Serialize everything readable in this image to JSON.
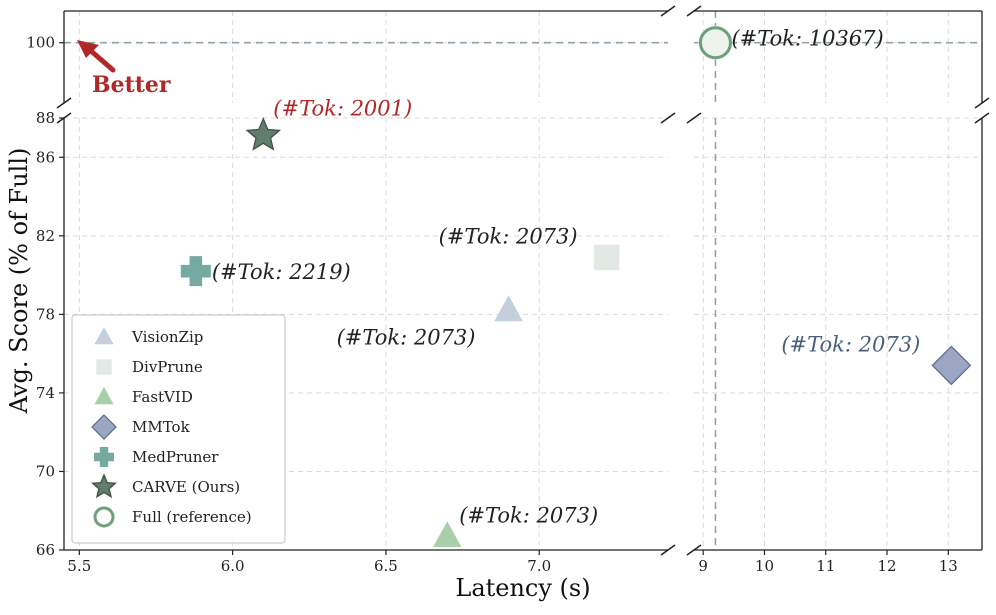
{
  "chart_data": {
    "type": "scatter",
    "title": "",
    "xlabel": "Latency (s)",
    "ylabel": "Avg. Score (% of Full)",
    "x_axis_segments": [
      {
        "range": [
          5.45,
          7.42
        ],
        "ticks": [
          5.5,
          6.0,
          6.5,
          7.0
        ],
        "tick_labels": [
          "5.5",
          "6.0",
          "6.5",
          "7.0"
        ]
      },
      {
        "range": [
          8.85,
          13.55
        ],
        "ticks": [
          9,
          10,
          11,
          12,
          13
        ],
        "tick_labels": [
          "9",
          "10",
          "11",
          "12",
          "13"
        ]
      }
    ],
    "y_axis_segments": [
      {
        "range": [
          96.2,
          102.0
        ],
        "ticks": [
          100
        ],
        "tick_labels": [
          "100"
        ]
      },
      {
        "range": [
          66,
          88
        ],
        "ticks": [
          66,
          70,
          74,
          78,
          82,
          86,
          88
        ],
        "tick_labels": [
          "66",
          "70",
          "74",
          "78",
          "82",
          "86",
          "88"
        ]
      }
    ],
    "grid": true,
    "legend_position": "bottom-left",
    "series": [
      {
        "name": "VisionZip",
        "marker": "triangle",
        "color": "#c4cfdd",
        "x": 6.9,
        "y": 78.2,
        "annotation": "(#Tok: 2073)",
        "annotation_color": "#222222"
      },
      {
        "name": "DivPrune",
        "marker": "square",
        "color": "#e2e8e3",
        "x": 7.22,
        "y": 80.9,
        "annotation": "(#Tok: 2073)",
        "annotation_color": "#222222"
      },
      {
        "name": "FastVID",
        "marker": "triangle",
        "color": "#a8cfa9",
        "x": 6.7,
        "y": 66.7,
        "annotation": "(#Tok: 2073)",
        "annotation_color": "#222222"
      },
      {
        "name": "MMTok",
        "marker": "diamond",
        "color": "#9aa6c3",
        "x": 13.05,
        "y": 75.4,
        "annotation": "(#Tok: 2073)",
        "annotation_color": "#4c5f7e"
      },
      {
        "name": "MedPruner",
        "marker": "plus",
        "color": "#74aaa0",
        "x": 5.88,
        "y": 80.2,
        "annotation": "(#Tok: 2219)",
        "annotation_color": "#222222"
      },
      {
        "name": "CARVE (Ours)",
        "marker": "star",
        "color": "#607e6a",
        "x": 6.1,
        "y": 87.1,
        "annotation": "(#Tok: 2001)",
        "annotation_color": "#b22727"
      },
      {
        "name": "Full (reference)",
        "marker": "circle-open",
        "color": "#6f9f7a",
        "x": 9.2,
        "y": 100,
        "annotation": "(#Tok: 10367)",
        "annotation_color": "#222222"
      }
    ],
    "reference_lines": {
      "horizontal_y": 100,
      "vertical_x": 9.2,
      "color": "#8fa6a0"
    },
    "arrow_annotation": {
      "text": "Better",
      "color": "#b22727"
    }
  }
}
